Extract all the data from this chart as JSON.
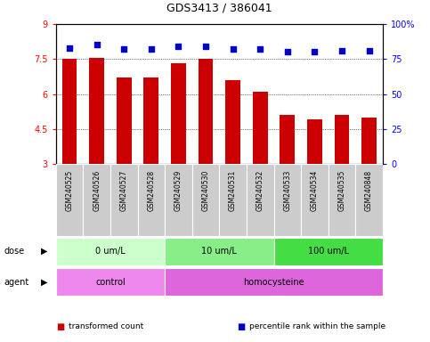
{
  "title": "GDS3413 / 386041",
  "samples": [
    "GSM240525",
    "GSM240526",
    "GSM240527",
    "GSM240528",
    "GSM240529",
    "GSM240530",
    "GSM240531",
    "GSM240532",
    "GSM240533",
    "GSM240534",
    "GSM240535",
    "GSM240848"
  ],
  "bar_values": [
    7.5,
    7.55,
    6.7,
    6.7,
    7.3,
    7.5,
    6.6,
    6.1,
    5.1,
    4.9,
    5.1,
    5.0
  ],
  "percentile_values": [
    83,
    85,
    82,
    82,
    84,
    84,
    82,
    82,
    80,
    80,
    81,
    81
  ],
  "bar_color": "#cc0000",
  "percentile_color": "#0000cc",
  "ylim_left": [
    3,
    9
  ],
  "ylim_right": [
    0,
    100
  ],
  "yticks_left": [
    3,
    4.5,
    6,
    7.5,
    9
  ],
  "yticks_right": [
    0,
    25,
    50,
    75,
    100
  ],
  "grid_y": [
    3,
    4.5,
    6,
    7.5,
    9
  ],
  "dose_groups": [
    {
      "label": "0 um/L",
      "start": 0,
      "end": 4,
      "color": "#ccffcc"
    },
    {
      "label": "10 um/L",
      "start": 4,
      "end": 8,
      "color": "#88ee88"
    },
    {
      "label": "100 um/L",
      "start": 8,
      "end": 12,
      "color": "#44dd44"
    }
  ],
  "agent_groups": [
    {
      "label": "control",
      "start": 0,
      "end": 4,
      "color": "#ee88ee"
    },
    {
      "label": "homocysteine",
      "start": 4,
      "end": 12,
      "color": "#dd66dd"
    }
  ],
  "dose_label": "dose",
  "agent_label": "agent",
  "legend_items": [
    {
      "label": "transformed count",
      "color": "#cc0000"
    },
    {
      "label": "percentile rank within the sample",
      "color": "#0000cc"
    }
  ],
  "sample_box_color": "#cccccc",
  "figsize": [
    4.83,
    3.84
  ],
  "dpi": 100
}
